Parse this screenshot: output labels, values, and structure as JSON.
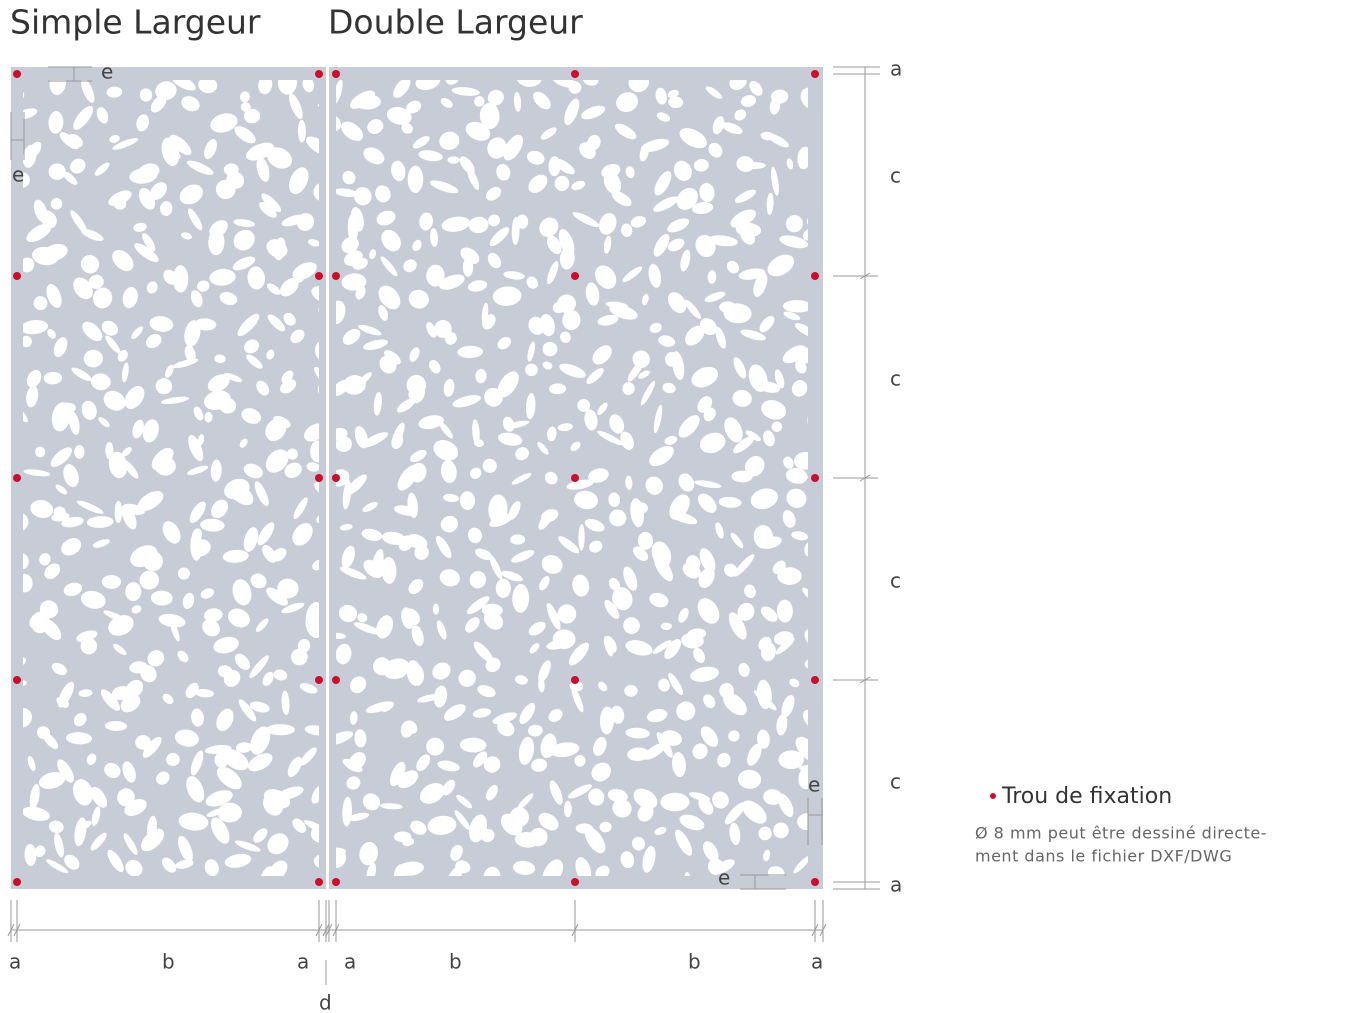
{
  "titles": [
    "Simple Largeur",
    "Double Largeur"
  ],
  "dimensions": {
    "top_e": "e",
    "left_e": "e",
    "right": [
      "a",
      "c",
      "c",
      "c",
      "c",
      "a"
    ],
    "bottom_right_e": [
      "e",
      "e"
    ],
    "bottom": [
      "a",
      "b",
      "a",
      "a",
      "b",
      "b",
      "a"
    ],
    "gap": "d"
  },
  "legend": {
    "title": "Trou de fixation",
    "note": [
      "Ø 8 mm peut être dessiné directe-",
      "ment dans le fichier DXF/DWG"
    ]
  }
}
